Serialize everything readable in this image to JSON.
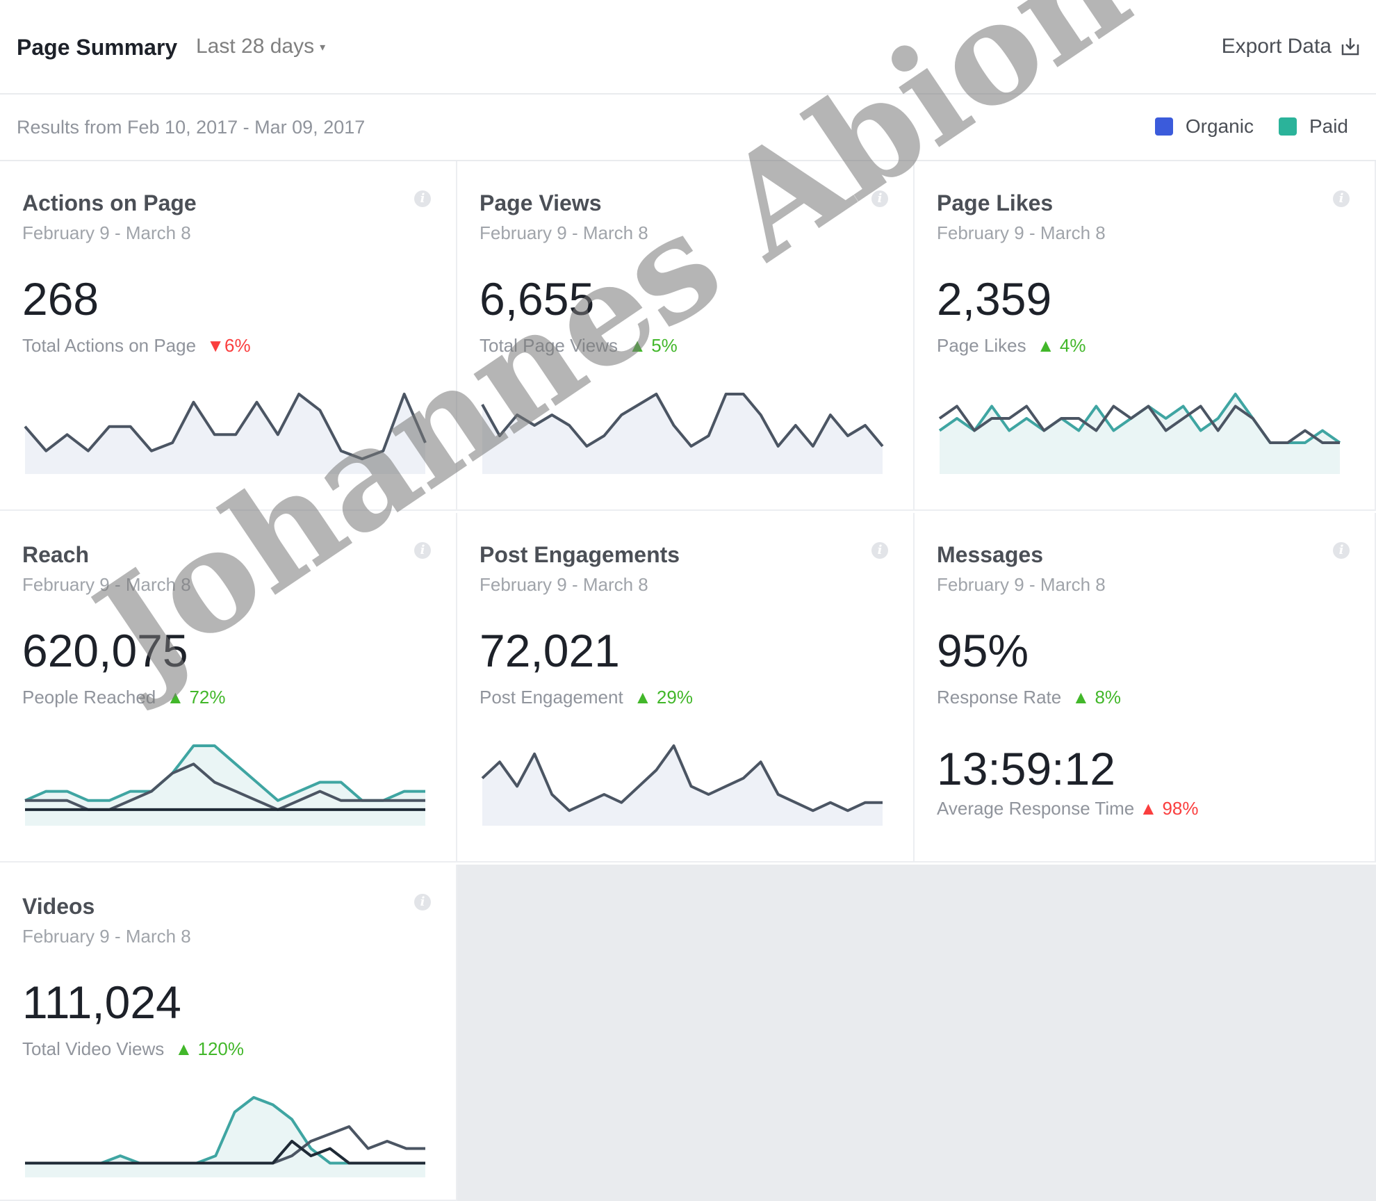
{
  "header": {
    "title": "Page Summary",
    "range": "Last 28 days",
    "export": "Export Data"
  },
  "subheader": {
    "results": "Results from Feb 10, 2017 - Mar 09, 2017",
    "legend": [
      {
        "label": "Organic",
        "color": "#3b5bdb"
      },
      {
        "label": "Paid",
        "color": "#2bb39a"
      }
    ]
  },
  "cards": [
    {
      "title": "Actions on Page",
      "date": "February 9 - March 8",
      "value": "268",
      "label": "Total Actions on Page",
      "change": "6%",
      "direction": "down"
    },
    {
      "title": "Page Views",
      "date": "February 9 - March 8",
      "value": "6,655",
      "label": "Total Page Views",
      "change": "5%",
      "direction": "up"
    },
    {
      "title": "Page Likes",
      "date": "February 9 - March 8",
      "value": "2,359",
      "label": "Page Likes",
      "change": "4%",
      "direction": "up"
    },
    {
      "title": "Reach",
      "date": "February 9 - March 8",
      "value": "620,075",
      "label": "People Reached",
      "change": "72%",
      "direction": "up"
    },
    {
      "title": "Post Engagements",
      "date": "February 9 - March 8",
      "value": "72,021",
      "label": "Post Engagement",
      "change": "29%",
      "direction": "up"
    },
    {
      "title": "Messages",
      "date": "February 9 - March 8",
      "value": "95%",
      "label": "Response Rate",
      "change": "8%",
      "direction": "up",
      "value2": "13:59:12",
      "label2": "Average Response Time",
      "change2": "98%",
      "direction2": "up"
    },
    {
      "title": "Videos",
      "date": "February 9 - March 8",
      "value": "111,024",
      "label": "Total Video Views",
      "change": "120%",
      "direction": "up"
    }
  ],
  "chart_data": [
    {
      "type": "area",
      "series": [
        {
          "values": [
            5,
            2,
            4,
            2,
            5,
            5,
            2,
            3,
            8,
            4,
            4,
            8,
            4,
            9,
            7,
            2,
            1,
            2,
            9,
            3
          ]
        }
      ]
    },
    {
      "type": "area",
      "series": [
        {
          "values": [
            6,
            3,
            5,
            4,
            5,
            4,
            2,
            3,
            5,
            6,
            7,
            4,
            2,
            3,
            7,
            7,
            5,
            2,
            4,
            2,
            5,
            3,
            4,
            2
          ]
        }
      ]
    },
    {
      "type": "line",
      "series": [
        {
          "values": [
            3,
            4,
            3,
            5,
            3,
            4,
            3,
            4,
            3,
            5,
            3,
            4,
            5,
            4,
            5,
            3,
            4,
            6,
            4,
            2,
            2,
            2,
            3,
            2
          ]
        },
        {
          "values": [
            4,
            5,
            3,
            4,
            4,
            5,
            3,
            4,
            4,
            3,
            5,
            4,
            5,
            3,
            4,
            5,
            3,
            5,
            4,
            2,
            2,
            3,
            2,
            2
          ]
        }
      ]
    },
    {
      "type": "line",
      "series": [
        {
          "values": [
            2,
            3,
            3,
            2,
            2,
            3,
            3,
            5,
            8,
            8,
            6,
            4,
            2,
            3,
            4,
            4,
            2,
            2,
            3,
            3
          ]
        },
        {
          "values": [
            2,
            2,
            2,
            1,
            1,
            2,
            3,
            5,
            6,
            4,
            3,
            2,
            1,
            2,
            3,
            2,
            2,
            2,
            2,
            2
          ]
        },
        {
          "values": [
            1,
            1,
            1,
            1,
            1,
            1,
            1,
            1,
            1,
            1,
            1,
            1,
            1,
            1,
            1,
            1,
            1,
            1,
            1,
            1
          ]
        }
      ]
    },
    {
      "type": "area",
      "series": [
        {
          "values": [
            5,
            7,
            4,
            8,
            3,
            1,
            2,
            3,
            2,
            4,
            6,
            9,
            4,
            3,
            4,
            5,
            7,
            3,
            2,
            1,
            2,
            1,
            2,
            2
          ]
        }
      ]
    },
    null,
    {
      "type": "line",
      "series": [
        {
          "values": [
            1,
            1,
            1,
            1,
            1,
            2,
            1,
            1,
            1,
            1,
            2,
            8,
            10,
            9,
            7,
            3,
            1,
            1,
            1,
            1,
            1,
            1
          ]
        },
        {
          "values": [
            1,
            1,
            1,
            1,
            1,
            1,
            1,
            1,
            1,
            1,
            1,
            1,
            1,
            1,
            2,
            4,
            5,
            6,
            3,
            4,
            3,
            3
          ]
        },
        {
          "values": [
            1,
            1,
            1,
            1,
            1,
            1,
            1,
            1,
            1,
            1,
            1,
            1,
            1,
            1,
            4,
            2,
            3,
            1,
            1,
            1,
            1,
            1
          ]
        }
      ]
    }
  ],
  "watermark": "Johannes Abion"
}
